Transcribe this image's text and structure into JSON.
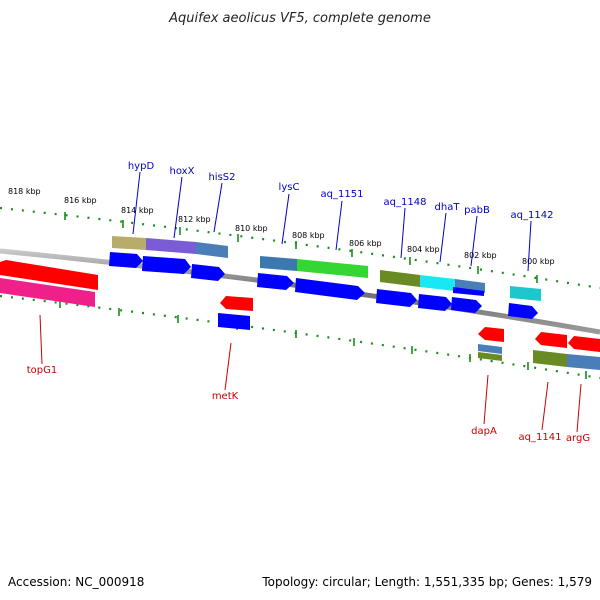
{
  "title": "Aquifex aeolicus VF5, complete genome",
  "footer": {
    "accession": "Accession: NC_000918",
    "stats": "Topology: circular; Length: 1,551,335 bp; Genes: 1,579"
  },
  "scale_labels": [
    "818 kbp",
    "816 kbp",
    "814 kbp",
    "812 kbp",
    "810 kbp",
    "808 kbp",
    "806 kbp",
    "804 kbp",
    "802 kbp",
    "800 kbp"
  ],
  "forward_genes": [
    "hypD",
    "hoxX",
    "hisS2",
    "lysC",
    "aq_1151",
    "aq_1148",
    "dhaT",
    "pabB",
    "aq_1142"
  ],
  "reverse_genes": [
    "topG1",
    "metK",
    "dapA",
    "aq_1141",
    "argG"
  ],
  "colors": {
    "forward_label": "#0000c8",
    "reverse_label": "#c80000",
    "tick": "#1a8c1a",
    "backbone": "#7a7a7a",
    "cds_forward": "#0000ff",
    "cds_reverse": "#ff0000"
  }
}
